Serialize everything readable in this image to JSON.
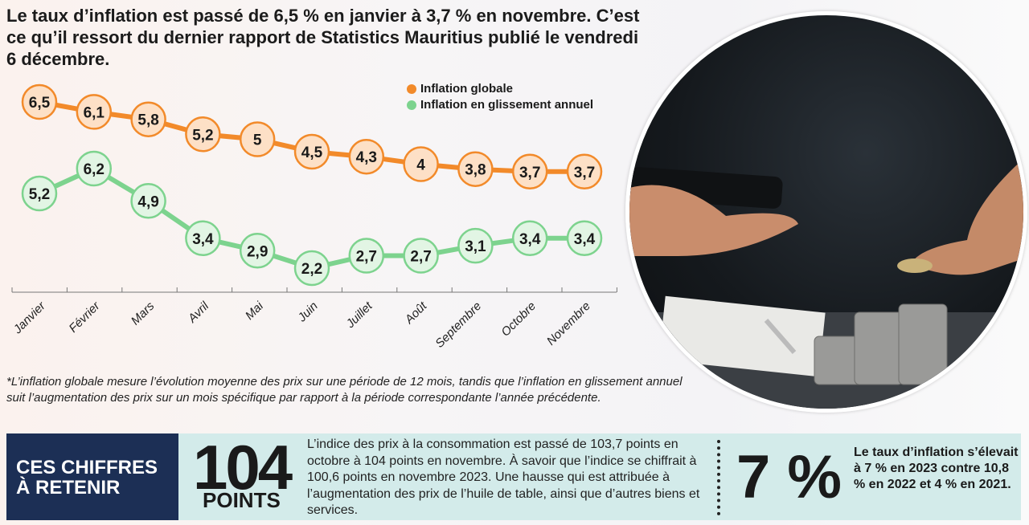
{
  "headline": "Le taux d’inflation est passé de 6,5 % en janvier à 3,7 % en novembre. C’est ce qu’il ressort du dernier rapport de Statistics Mauritius publié le vendredi 6 décembre.",
  "chart_data": {
    "type": "line",
    "categories": [
      "Janvier",
      "Février",
      "Mars",
      "Avril",
      "Mai",
      "Juin",
      "Juillet",
      "Août",
      "Septembre",
      "Octobre",
      "Novembre"
    ],
    "series": [
      {
        "name": "Inflation globale",
        "color": "#f28a2a",
        "fill": "#fde0c6",
        "values": [
          6.5,
          6.1,
          5.8,
          5.2,
          5,
          4.5,
          4.3,
          4,
          3.8,
          3.7,
          3.7
        ],
        "labels": [
          "6,5",
          "6,1",
          "5,8",
          "5,2",
          "5",
          "4,5",
          "4,3",
          "4",
          "3,8",
          "3,7",
          "3,7"
        ]
      },
      {
        "name": "Inflation en glissement annuel",
        "color": "#7dd38e",
        "fill": "#e2f5e4",
        "values": [
          5.2,
          6.2,
          4.9,
          3.4,
          2.9,
          2.2,
          2.7,
          2.7,
          3.1,
          3.4,
          3.4
        ],
        "labels": [
          "5,2",
          "6,2",
          "4,9",
          "3,4",
          "2,9",
          "2,2",
          "2,7",
          "2,7",
          "3,1",
          "3,4",
          "3,4"
        ]
      }
    ],
    "legend": "top-right",
    "grid": false
  },
  "note": "*L’inflation globale mesure l’évolution moyenne des prix sur une période de 12 mois, tandis que l’inflation en glissement annuel suit l’augmentation des prix sur un mois spécifique par rapport à la période correspondante l’année précédente.",
  "box": {
    "title_line1": "CES CHIFFRES",
    "title_line2": "À RETENIR",
    "fig1": "104",
    "fig1_unit": "POINTS",
    "fig1_text": "L’indice des prix à la consommation est passé de 103,7 points en octobre à 104 points en novembre. À savoir que l’indice se chiffrait à 100,6 points en novembre 2023. Une hausse qui est attribuée à l’augmentation des prix de l’huile de table, ainsi que d’autres biens et services.",
    "fig2": "7 %",
    "fig2_text": "Le taux d’inflation s’élevait à 7 % en 2023 contre 10,8 % en 2022 et 4 % en 2021."
  }
}
